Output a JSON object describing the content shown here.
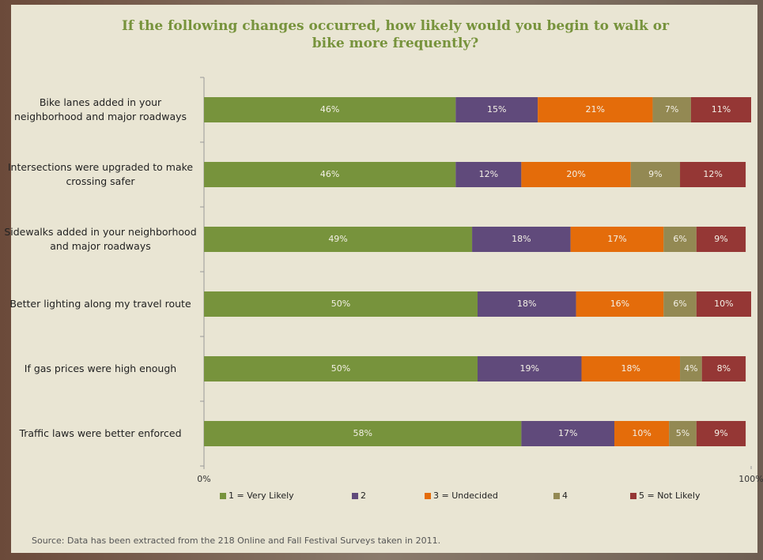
{
  "chart_data": {
    "type": "stacked-bar-horizontal",
    "title": "If the following changes occurred, how likely would you begin to walk or bike more frequently?",
    "source": "Source: Data has been extracted from the 218 Online and Fall Festival Surveys taken in 2011.",
    "categories": [
      "Bike lanes added in your neighborhood and major roadways",
      "Intersections were upgraded to make crossing safer",
      "Sidewalks added in your neighborhood and major roadways",
      "Better lighting along my travel route",
      "If gas prices were high enough",
      "Traffic laws were better enforced"
    ],
    "series": [
      {
        "name": "1 = Very Likely",
        "color": "#77933c",
        "values": [
          46,
          46,
          49,
          50,
          50,
          58
        ],
        "value_labels": [
          "46%",
          "46%",
          "49%",
          "50%",
          "50%",
          "58%"
        ]
      },
      {
        "name": "2",
        "color": "#604a7b",
        "values": [
          15,
          12,
          18,
          18,
          19,
          17
        ],
        "value_labels": [
          "15%",
          "12%",
          "18%",
          "18%",
          "19%",
          "17%"
        ]
      },
      {
        "name": "3 = Undecided",
        "color": "#e46c0a",
        "values": [
          21,
          20,
          17,
          16,
          18,
          10
        ],
        "value_labels": [
          "21%",
          "20%",
          "17%",
          "16%",
          "18%",
          "10%"
        ]
      },
      {
        "name": "4",
        "color": "#938953",
        "values": [
          7,
          9,
          6,
          6,
          4,
          5
        ],
        "value_labels": [
          "7%",
          "9%",
          "6%",
          "6%",
          "4%",
          "5%"
        ]
      },
      {
        "name": "5 = Not Likely",
        "color": "#953735",
        "values": [
          11,
          12,
          9,
          10,
          8,
          9
        ],
        "value_labels": [
          "11%",
          "12%",
          "9%",
          "10%",
          "8%",
          "9%"
        ]
      }
    ],
    "xlim": [
      0,
      100
    ],
    "xticks": [
      {
        "value": 0,
        "label": "0%"
      },
      {
        "value": 100,
        "label": "100%"
      }
    ],
    "legend": "bottom"
  }
}
